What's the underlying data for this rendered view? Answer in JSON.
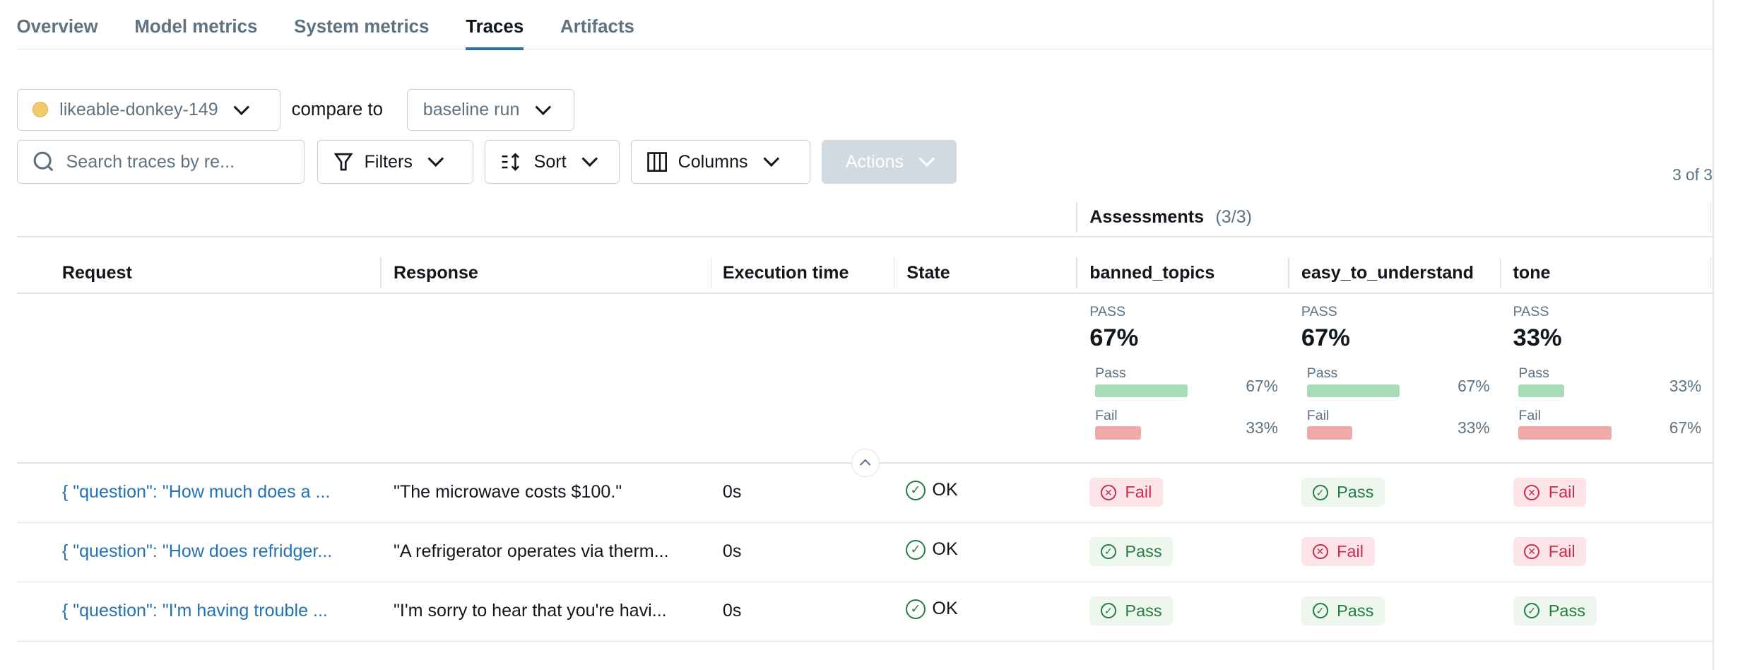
{
  "tabs": [
    "Overview",
    "Model metrics",
    "System metrics",
    "Traces",
    "Artifacts"
  ],
  "active_tab": "Traces",
  "run_selector": {
    "value": "likeable-donkey-149",
    "color": "#f2c96d"
  },
  "compare_label": "compare to",
  "compare_selector": {
    "value": "baseline run"
  },
  "search": {
    "placeholder": "Search traces by re..."
  },
  "toolbar": {
    "filters": "Filters",
    "sort": "Sort",
    "columns": "Columns",
    "actions": "Actions"
  },
  "count": "3 of 3",
  "assessments": {
    "label": "Assessments",
    "count": "(3/3)"
  },
  "columns": [
    "Request",
    "Response",
    "Execution time",
    "State",
    "banned_topics",
    "easy_to_understand",
    "tone"
  ],
  "summary": [
    {
      "label": "PASS",
      "value": "67%",
      "pass": {
        "label": "Pass",
        "pct": 67,
        "text": "67%"
      },
      "fail": {
        "label": "Fail",
        "pct": 33,
        "text": "33%"
      }
    },
    {
      "label": "PASS",
      "value": "67%",
      "pass": {
        "label": "Pass",
        "pct": 67,
        "text": "67%"
      },
      "fail": {
        "label": "Fail",
        "pct": 33,
        "text": "33%"
      }
    },
    {
      "label": "PASS",
      "value": "33%",
      "pass": {
        "label": "Pass",
        "pct": 33,
        "text": "33%"
      },
      "fail": {
        "label": "Fail",
        "pct": 67,
        "text": "67%"
      }
    }
  ],
  "rows": [
    {
      "request": "{ \"question\": \"How much does a ...",
      "response": "\"The microwave costs $100.\"",
      "time": "0s",
      "state": "OK",
      "assess": [
        "Fail",
        "Pass",
        "Fail"
      ]
    },
    {
      "request": "{ \"question\": \"How does refridger...",
      "response": "\"A refrigerator operates via therm...",
      "time": "0s",
      "state": "OK",
      "assess": [
        "Pass",
        "Fail",
        "Fail"
      ]
    },
    {
      "request": "{ \"question\": \"I'm having trouble ...",
      "response": "\"I'm sorry to hear that you're havi...",
      "time": "0s",
      "state": "OK",
      "assess": [
        "Pass",
        "Pass",
        "Pass"
      ]
    }
  ]
}
